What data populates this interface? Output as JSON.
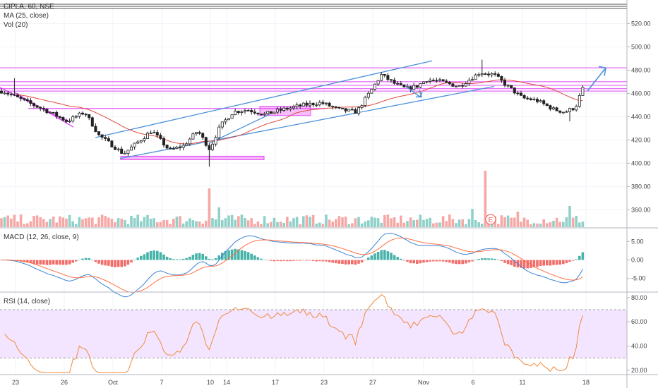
{
  "header": {
    "symbol_line": "CIPLA, 60, NSE",
    "ma_label": "MA (25, close)",
    "vol_label": "Vol (20)"
  },
  "colors": {
    "up": "#26a69a",
    "down": "#ef5350",
    "candle": "#222222",
    "ma": "#e0473b",
    "magenta": "#e040fb",
    "channel": "#4a90d9",
    "macd_line": "#3b82d6",
    "signal_line": "#ff7043",
    "rsi_line": "#f08a3c",
    "rsi_band": "#f3e5ff"
  },
  "chart_data": [
    {
      "type": "candlestick",
      "title": "CIPLA, 60, NSE",
      "x_ticks": [
        "23",
        "26",
        "Oct",
        "7",
        "10",
        "14",
        "17",
        "23",
        "27",
        "Nov",
        "6",
        "11",
        "18"
      ],
      "y_ticks": [
        "520.00",
        "500.00",
        "480.00",
        "460.00",
        "440.00",
        "420.00",
        "400.00",
        "380.00",
        "360.00"
      ],
      "ylim": [
        345,
        533
      ],
      "close_path": [
        {
          "d": "Sep 23",
          "v": 462
        },
        {
          "d": "Sep 24",
          "v": 452
        },
        {
          "d": "Sep 25",
          "v": 444
        },
        {
          "d": "Sep 26",
          "v": 436
        },
        {
          "d": "Sep 27",
          "v": 444
        },
        {
          "d": "Sep 30",
          "v": 424
        },
        {
          "d": "Oct 1",
          "v": 408
        },
        {
          "d": "Oct 3",
          "v": 428
        },
        {
          "d": "Oct 4",
          "v": 411
        },
        {
          "d": "Oct 7",
          "v": 415
        },
        {
          "d": "Oct 9",
          "v": 428
        },
        {
          "d": "Oct 10",
          "v": 412
        },
        {
          "d": "Oct 11",
          "v": 432
        },
        {
          "d": "Oct 14",
          "v": 444
        },
        {
          "d": "Oct 15",
          "v": 446
        },
        {
          "d": "Oct 17",
          "v": 442
        },
        {
          "d": "Oct 18",
          "v": 446
        },
        {
          "d": "Oct 22",
          "v": 450
        },
        {
          "d": "Oct 23",
          "v": 452
        },
        {
          "d": "Oct 24",
          "v": 446
        },
        {
          "d": "Oct 25",
          "v": 444
        },
        {
          "d": "Oct 27",
          "v": 462
        },
        {
          "d": "Oct 28",
          "v": 476
        },
        {
          "d": "Oct 29",
          "v": 468
        },
        {
          "d": "Oct 30",
          "v": 464
        },
        {
          "d": "Oct 31",
          "v": 466
        },
        {
          "d": "Nov 1",
          "v": 472
        },
        {
          "d": "Nov 4",
          "v": 470
        },
        {
          "d": "Nov 5",
          "v": 466
        },
        {
          "d": "Nov 6",
          "v": 478
        },
        {
          "d": "Nov 7",
          "v": 476
        },
        {
          "d": "Nov 8",
          "v": 468
        },
        {
          "d": "Nov 11",
          "v": 456
        },
        {
          "d": "Nov 12",
          "v": 454
        },
        {
          "d": "Nov 13",
          "v": 446
        },
        {
          "d": "Nov 14",
          "v": 444
        },
        {
          "d": "Nov 15",
          "v": 448
        },
        {
          "d": "Nov 18",
          "v": 464
        }
      ],
      "horizontal_levels": [
        482,
        470,
        467,
        464,
        462
      ],
      "annotations": [
        "E"
      ]
    },
    {
      "type": "bar",
      "title": "MACD (12, 26, close, 9)",
      "y_ticks": [
        "5.00",
        "0.00",
        "-5.00"
      ],
      "ylim": [
        -8.5,
        8.5
      ]
    },
    {
      "type": "line",
      "title": "RSI (14, close)",
      "y_ticks": [
        "80.00",
        "60.00",
        "40.00",
        "20.00"
      ],
      "ylim": [
        17,
        84
      ],
      "band": [
        30,
        70
      ]
    }
  ]
}
